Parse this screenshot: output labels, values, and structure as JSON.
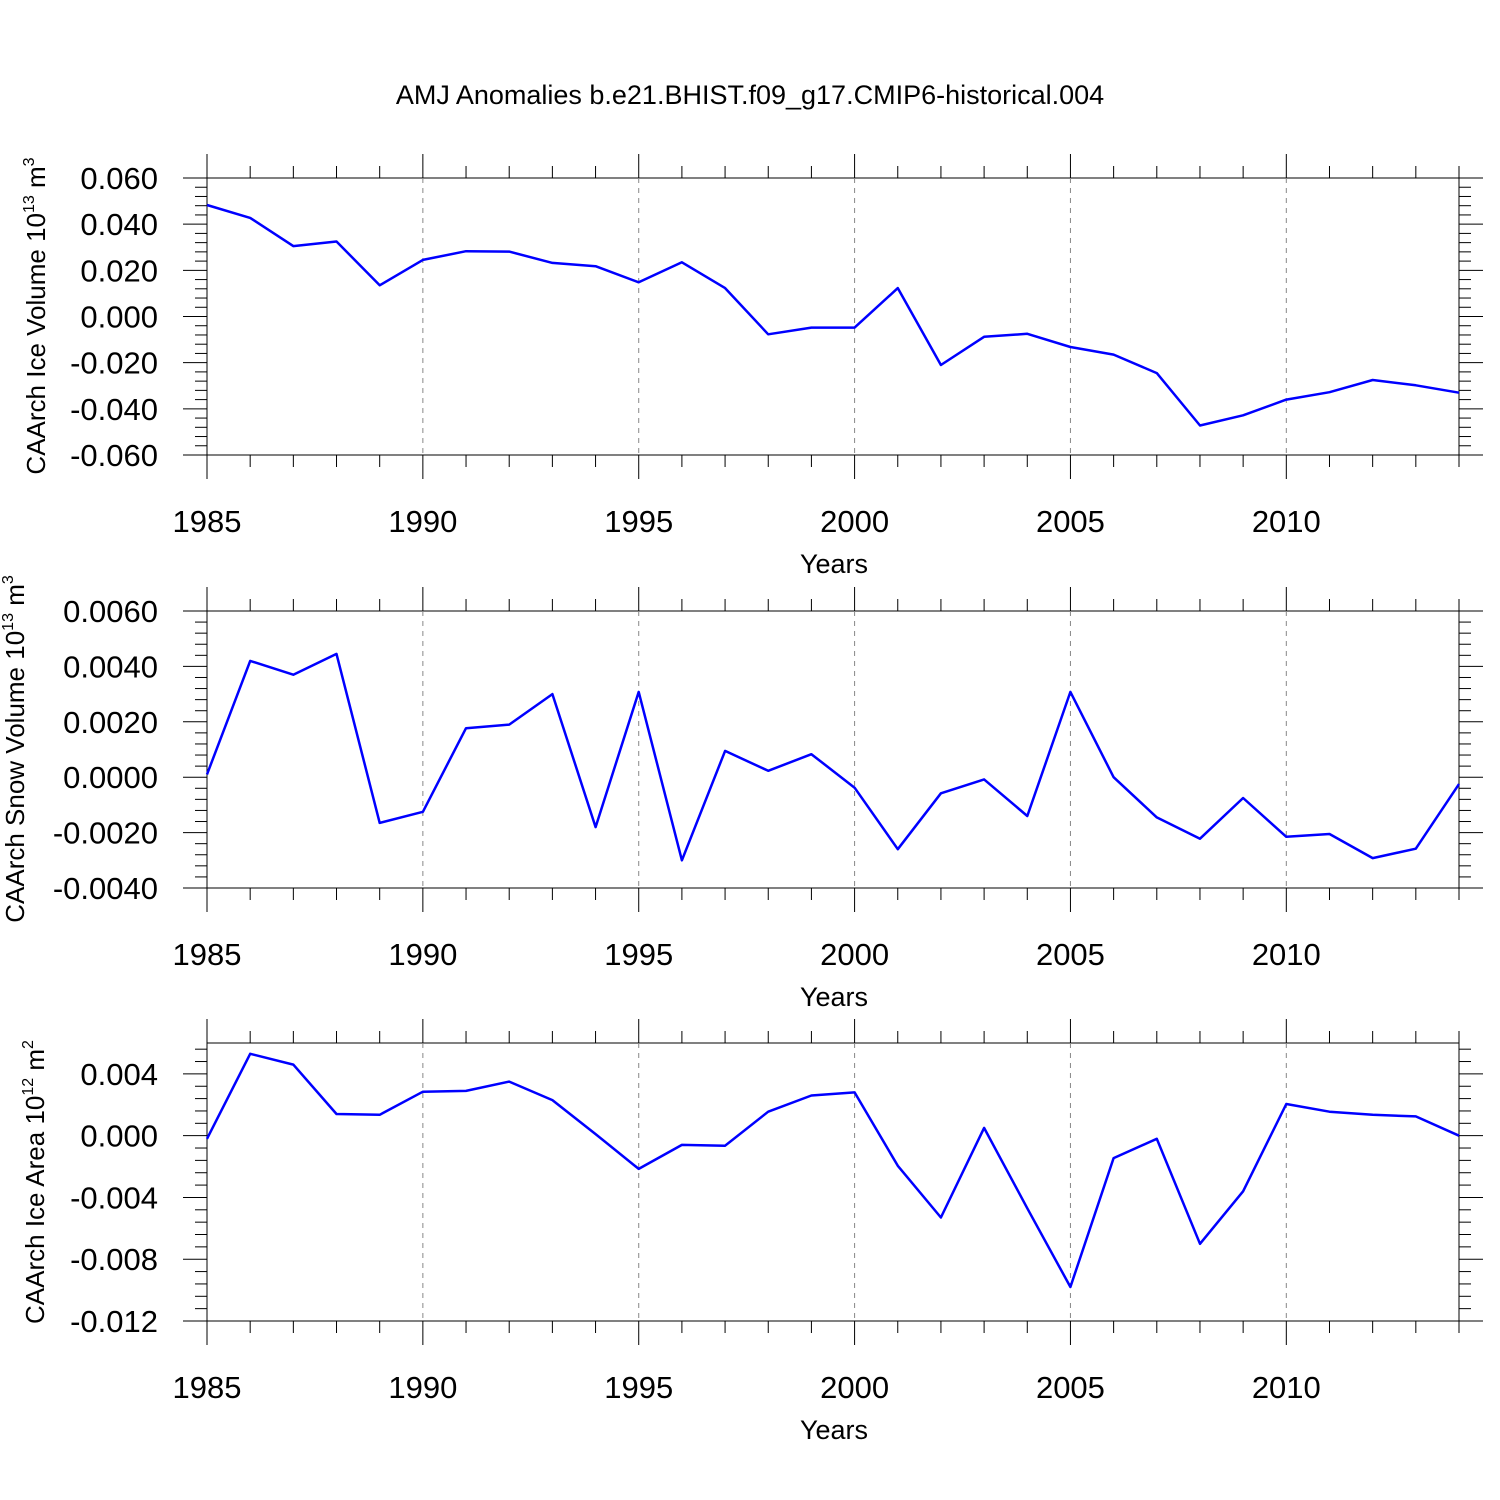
{
  "title": "AMJ Anomalies b.e21.BHIST.f09_g17.CMIP6-historical.004",
  "colors": {
    "line": "#0000ff",
    "frame": "#000000",
    "grid": "#888888"
  },
  "chart_data": [
    {
      "type": "line",
      "ylabel_main": "CAArch Ice Volume 10",
      "ylabel_exp": "13",
      "ylabel_unit": " m",
      "ylabel_unit_exp": "3",
      "xlabel": "Years",
      "xlim": [
        1985,
        2014
      ],
      "ylim": [
        -0.06,
        0.06
      ],
      "x_ticks": [
        "1985",
        "1990",
        "1995",
        "2000",
        "2005",
        "2010"
      ],
      "y_ticks": [
        "0.060",
        "0.040",
        "0.020",
        "0.000",
        "-0.020",
        "-0.040",
        "-0.060"
      ],
      "grid": "vertical dashed at major x ticks",
      "series": [
        {
          "x": [
            1985,
            1986,
            1987,
            1988,
            1989,
            1990,
            1991,
            1992,
            1993,
            1994,
            1995,
            1996,
            1997,
            1998,
            1999,
            2000,
            2001,
            2002,
            2003,
            2004,
            2005,
            2006,
            2007,
            2008,
            2009,
            2010,
            2011,
            2012,
            2013,
            2014
          ],
          "values": [
            0.0483,
            0.0427,
            0.0305,
            0.0325,
            0.0135,
            0.0245,
            0.0283,
            0.0281,
            0.0232,
            0.0218,
            0.0148,
            0.0235,
            0.0123,
            -0.0077,
            -0.0048,
            -0.0048,
            0.0123,
            -0.021,
            -0.0088,
            -0.0075,
            -0.0132,
            -0.0165,
            -0.0245,
            -0.0472,
            -0.0428,
            -0.036,
            -0.0328,
            -0.0275,
            -0.0298,
            -0.033
          ]
        }
      ]
    },
    {
      "type": "line",
      "ylabel_main": "CAArch Snow Volume 10",
      "ylabel_exp": "13",
      "ylabel_unit": " m",
      "ylabel_unit_exp": "3",
      "xlabel": "Years",
      "xlim": [
        1985,
        2014
      ],
      "ylim": [
        -0.004,
        0.006
      ],
      "x_ticks": [
        "1985",
        "1990",
        "1995",
        "2000",
        "2005",
        "2010"
      ],
      "y_ticks": [
        "0.0060",
        "0.0040",
        "0.0020",
        "0.0000",
        "-0.0020",
        "-0.0040"
      ],
      "grid": "vertical dashed at major x ticks",
      "series": [
        {
          "x": [
            1985,
            1986,
            1987,
            1988,
            1989,
            1990,
            1991,
            1992,
            1993,
            1994,
            1995,
            1996,
            1997,
            1998,
            1999,
            2000,
            2001,
            2002,
            2003,
            2004,
            2005,
            2006,
            2007,
            2008,
            2009,
            2010,
            2011,
            2012,
            2013,
            2014
          ],
          "values": [
            0.0001,
            0.0042,
            0.0037,
            0.00445,
            -0.00165,
            -0.00125,
            0.00177,
            0.0019,
            0.003,
            -0.0018,
            0.00308,
            -0.003,
            0.00095,
            0.00023,
            0.00083,
            -0.00038,
            -0.0026,
            -0.00058,
            -8e-05,
            -0.0014,
            0.00308,
            0.0,
            -0.00145,
            -0.00222,
            -0.00075,
            -0.00215,
            -0.00205,
            -0.00292,
            -0.00258,
            -0.00025
          ]
        }
      ]
    },
    {
      "type": "line",
      "ylabel_main": "CAArch Ice Area 10",
      "ylabel_exp": "12",
      "ylabel_unit": " m",
      "ylabel_unit_exp": "2",
      "xlabel": "Years",
      "xlim": [
        1985,
        2014
      ],
      "ylim": [
        -0.012,
        0.006
      ],
      "x_ticks": [
        "1985",
        "1990",
        "1995",
        "2000",
        "2005",
        "2010"
      ],
      "y_ticks": [
        "0.004",
        "0.000",
        "-0.004",
        "-0.008",
        "-0.012"
      ],
      "grid": "vertical dashed at major x ticks",
      "series": [
        {
          "x": [
            1985,
            1986,
            1987,
            1988,
            1989,
            1990,
            1991,
            1992,
            1993,
            1994,
            1995,
            1996,
            1997,
            1998,
            1999,
            2000,
            2001,
            2002,
            2003,
            2004,
            2005,
            2006,
            2007,
            2008,
            2009,
            2010,
            2011,
            2012,
            2013,
            2014
          ],
          "values": [
            -0.0002,
            0.0053,
            0.0046,
            0.0014,
            0.00135,
            0.00285,
            0.0029,
            0.0035,
            0.0023,
            0.0001,
            -0.00215,
            -0.0006,
            -0.00065,
            0.00155,
            0.0026,
            0.0028,
            -0.00195,
            -0.0053,
            0.0005,
            -0.0047,
            -0.0098,
            -0.00145,
            -0.0002,
            -0.007,
            -0.0036,
            0.00205,
            0.00155,
            0.00135,
            0.00125,
            0.0
          ]
        }
      ]
    }
  ]
}
